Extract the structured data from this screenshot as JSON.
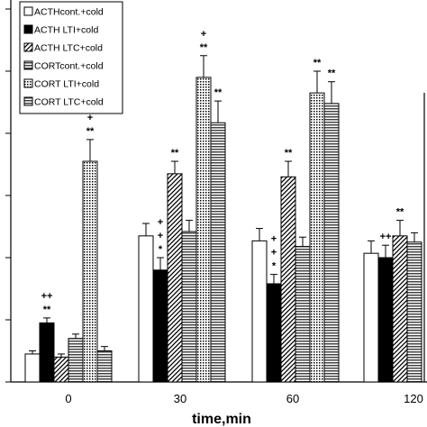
{
  "chart_data": {
    "type": "bar",
    "title": "",
    "xlabel": "time,min",
    "ylabel": "",
    "categories": [
      "0",
      "30",
      "60",
      "120"
    ],
    "ylim": [
      0,
      6
    ],
    "yticks": [
      0,
      1,
      2,
      3,
      4,
      5,
      6
    ],
    "grid": false,
    "legend_position": "top-left",
    "series": [
      {
        "name": "ACTHcont.+cold",
        "pattern": "white",
        "values": [
          0.45,
          2.35,
          2.27,
          2.07
        ],
        "errors": [
          0.05,
          0.2,
          0.2,
          0.2
        ]
      },
      {
        "name": "ACTH LTI+cold",
        "pattern": "black",
        "values": [
          0.95,
          1.8,
          1.58,
          2.0
        ],
        "errors": [
          0.08,
          0.2,
          0.15,
          0.2
        ]
      },
      {
        "name": "ACTH LTC+cold",
        "pattern": "diagonal",
        "values": [
          0.4,
          3.35,
          3.3,
          2.35
        ],
        "errors": [
          0.05,
          0.2,
          0.25,
          0.25
        ]
      },
      {
        "name": "CORTcont.+cold",
        "pattern": "hlines",
        "values": [
          0.7,
          2.42,
          2.18,
          2.25
        ],
        "errors": [
          0.07,
          0.18,
          0.15,
          0.15
        ]
      },
      {
        "name": "CORT LTI+cold",
        "pattern": "dots",
        "values": [
          3.55,
          4.9,
          4.65,
          0
        ],
        "errors": [
          0.35,
          0.35,
          0.35,
          0
        ]
      },
      {
        "name": "CORT LTC+cold",
        "pattern": "hlines",
        "values": [
          0.5,
          4.17,
          4.48,
          0
        ],
        "errors": [
          0.07,
          0.35,
          0.35,
          0
        ]
      }
    ],
    "annotations": [
      {
        "group": 0,
        "series": 1,
        "lines": [
          "++",
          "**"
        ]
      },
      {
        "group": 0,
        "series": 4,
        "lines": [
          "+",
          "**"
        ]
      },
      {
        "group": 1,
        "series": 1,
        "lines": [
          "+",
          "+",
          "*"
        ]
      },
      {
        "group": 1,
        "series": 2,
        "lines": [
          "**"
        ]
      },
      {
        "group": 1,
        "series": 4,
        "lines": [
          "+",
          "**"
        ]
      },
      {
        "group": 1,
        "series": 5,
        "lines": [
          "**"
        ]
      },
      {
        "group": 2,
        "series": 1,
        "lines": [
          "+",
          "+",
          "*"
        ]
      },
      {
        "group": 2,
        "series": 2,
        "lines": [
          "**"
        ]
      },
      {
        "group": 2,
        "series": 4,
        "lines": [
          "**"
        ]
      },
      {
        "group": 2,
        "series": 5,
        "lines": [
          "**"
        ]
      },
      {
        "group": 3,
        "series": 1,
        "lines": [
          "++"
        ]
      },
      {
        "group": 3,
        "series": 2,
        "lines": [
          "**"
        ]
      }
    ]
  }
}
